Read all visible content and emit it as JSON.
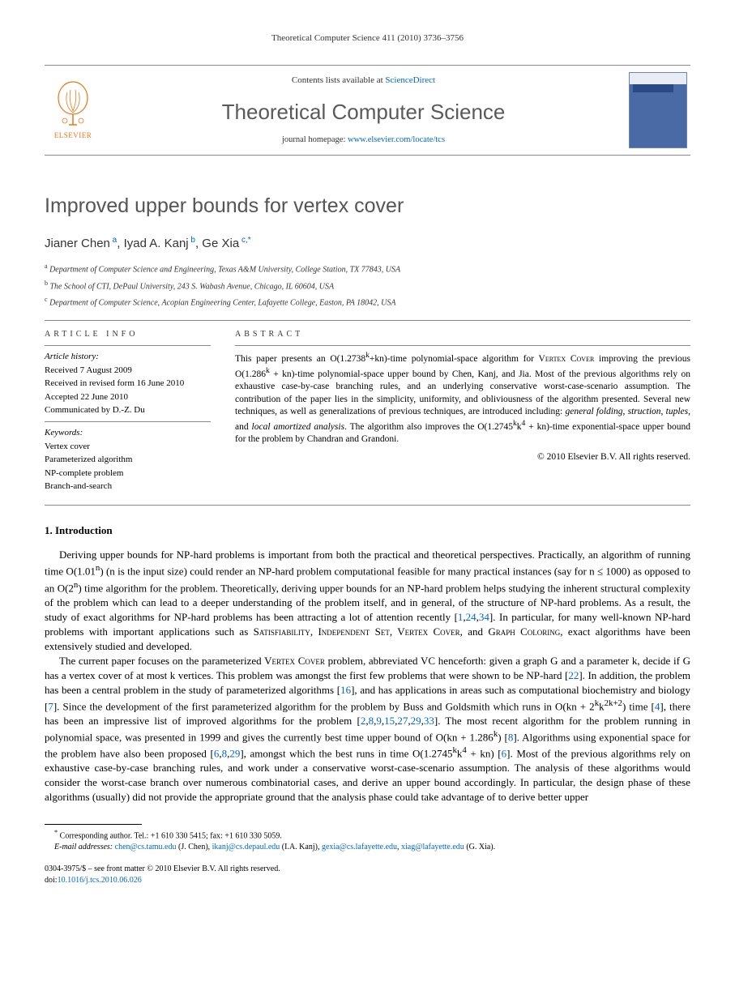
{
  "running_head": "Theoretical Computer Science 411 (2010) 3736–3756",
  "banner": {
    "contents_prefix": "Contents lists available at ",
    "contents_link": "ScienceDirect",
    "journal_name": "Theoretical Computer Science",
    "homepage_prefix": "journal homepage: ",
    "homepage_link": "www.elsevier.com/locate/tcs",
    "publisher": "ELSEVIER"
  },
  "title": "Improved upper bounds for vertex cover",
  "authors_html": "Jianer Chen<sup> a</sup>, Iyad A. Kanj<sup> b</sup>, Ge Xia<sup> c,</sup><sup>*</sup>",
  "affiliations": {
    "a": "Department of Computer Science and Engineering, Texas A&M University, College Station, TX 77843, USA",
    "b": "The School of CTI, DePaul University, 243 S. Wabash Avenue, Chicago, IL 60604, USA",
    "c": "Department of Computer Science, Acopian Engineering Center, Lafayette College, Easton, PA 18042, USA"
  },
  "info": {
    "label": "ARTICLE INFO",
    "history_head": "Article history:",
    "received": "Received 7 August 2009",
    "revised": "Received in revised form 16 June 2010",
    "accepted": "Accepted 22 June 2010",
    "communicated": "Communicated by D.-Z. Du",
    "kw_head": "Keywords:",
    "kw1": "Vertex cover",
    "kw2": "Parameterized algorithm",
    "kw3": "NP-complete problem",
    "kw4": "Branch-and-search"
  },
  "abstract": {
    "label": "ABSTRACT",
    "text": "This paper presents an O(1.2738<sup>k</sup>+kn)-time polynomial-space algorithm for V<span class='smallcaps'>ertex</span> C<span class='smallcaps'>over</span> improving the previous O(1.286<sup>k</sup> + kn)-time polynomial-space upper bound by Chen, Kanj, and Jia. Most of the previous algorithms rely on exhaustive case-by-case branching rules, and an underlying conservative worst-case-scenario assumption. The contribution of the paper lies in the simplicity, uniformity, and obliviousness of the algorithm presented. Several new techniques, as well as generalizations of previous techniques, are introduced including: <i>general folding</i>, <i>struction</i>, <i>tuples</i>, and <i>local amortized analysis</i>. The algorithm also improves the O(1.2745<sup>k</sup>k<sup>4</sup> + kn)-time exponential-space upper bound for the problem by Chandran and Grandoni.",
    "copyright": "© 2010 Elsevier B.V. All rights reserved."
  },
  "section1": {
    "heading": "1.  Introduction",
    "p1": "Deriving upper bounds for NP-hard problems is important from both the practical and theoretical perspectives. Practically, an algorithm of running time O(1.01<sup>n</sup>) (n is the input size) could render an NP-hard problem computational feasible for many practical instances (say for n ≤ 1000) as opposed to an O(2<sup>n</sup>) time algorithm for the problem. Theoretically, deriving upper bounds for an NP-hard problem helps studying the inherent structural complexity of the problem which can lead to a deeper understanding of the problem itself, and in general, of the structure of NP-hard problems. As a result, the study of exact algorithms for NP-hard problems has been attracting a lot of attention recently [<a>1</a>,<a>24</a>,<a>34</a>]. In particular, for many well-known NP-hard problems with important applications such as S<span class='smallcaps'>atisfiability</span>, I<span class='smallcaps'>ndependent</span> S<span class='smallcaps'>et</span>, V<span class='smallcaps'>ertex</span> C<span class='smallcaps'>over</span>, and G<span class='smallcaps'>raph</span> C<span class='smallcaps'>oloring</span>, exact algorithms have been extensively studied and developed.",
    "p2": "The current paper focuses on the parameterized V<span class='smallcaps'>ertex</span> C<span class='smallcaps'>over</span> problem, abbreviated VC henceforth: given a graph G and a parameter k, decide if G has a vertex cover of at most k vertices. This problem was amongst the first few problems that were shown to be NP-hard [<a>22</a>]. In addition, the problem has been a central problem in the study of parameterized algorithms [<a>16</a>], and has applications in areas such as computational biochemistry and biology [<a>7</a>]. Since the development of the first parameterized algorithm for the problem by Buss and Goldsmith which runs in O(kn + 2<sup>k</sup>k<sup>2k+2</sup>) time [<a>4</a>], there has been an impressive list of improved algorithms for the problem [<a>2</a>,<a>8</a>,<a>9</a>,<a>15</a>,<a>27</a>,<a>29</a>,<a>33</a>]. The most recent algorithm for the problem running in polynomial space, was presented in 1999 and gives the currently best time upper bound of O(kn + 1.286<sup>k</sup>) [<a>8</a>]. Algorithms using exponential space for the problem have also been proposed [<a>6</a>,<a>8</a>,<a>29</a>], amongst which the best runs in time O(1.2745<sup>k</sup>k<sup>4</sup> + kn) [<a>6</a>]. Most of the previous algorithms rely on exhaustive case-by-case branching rules, and work under a conservative worst-case-scenario assumption. The analysis of these algorithms would consider the worst-case branch over numerous combinatorial cases, and derive an upper bound accordingly. In particular, the design phase of these algorithms (usually) did not provide the appropriate ground that the analysis phase could take advantage of to derive better upper"
  },
  "footnotes": {
    "corresponding": "Corresponding author. Tel.: +1 610 330 5415; fax: +1 610 330 5059.",
    "emails_label": "E-mail addresses:",
    "e1": "chen@cs.tamu.edu",
    "e1_who": " (J. Chen), ",
    "e2": "ikanj@cs.depaul.edu",
    "e2_who": " (I.A. Kanj), ",
    "e3": "gexia@cs.lafayette.edu",
    "e3_sep": ", ",
    "e4": "xiag@lafayette.edu",
    "e4_who": " (G. Xia)."
  },
  "footer": {
    "issn": "0304-3975/$ – see front matter © 2010 Elsevier B.V. All rights reserved.",
    "doi_label": "doi:",
    "doi": "10.1016/j.tcs.2010.06.026"
  }
}
